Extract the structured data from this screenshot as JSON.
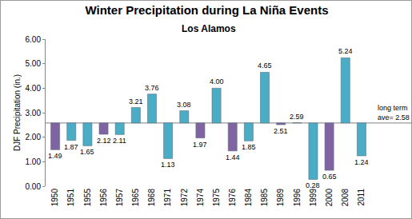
{
  "chart_data": {
    "type": "bar",
    "title": "Winter Precipitation during La Niña Events",
    "subtitle": "Los Alamos",
    "y_label": "DJF Precipitation (in.)",
    "categories": [
      "1950",
      "1951",
      "1955",
      "1956",
      "1957",
      "1965",
      "1968",
      "1971",
      "1972",
      "1974",
      "1975",
      "1976",
      "1984",
      "1985",
      "1989",
      "1996",
      "1999",
      "2000",
      "2008",
      "2011"
    ],
    "values": [
      1.49,
      1.87,
      1.65,
      2.12,
      2.11,
      3.21,
      3.76,
      1.13,
      3.08,
      1.97,
      4.0,
      1.44,
      1.85,
      4.65,
      2.51,
      2.59,
      0.28,
      0.65,
      5.24,
      1.24
    ],
    "value_labels": [
      "1.49",
      "1.87",
      "1.65",
      "2.12",
      "2.11",
      "3.21",
      "3.76",
      "1.13",
      "3.08",
      "1.97",
      "4.00",
      "1.44",
      "1.85",
      "4.65",
      "2.51",
      "2.59",
      "0.28",
      "0.65",
      "5.24",
      "1.24"
    ],
    "colors": [
      "#8064a2",
      "#4bacc6",
      "#4bacc6",
      "#8064a2",
      "#4bacc6",
      "#4bacc6",
      "#4bacc6",
      "#4bacc6",
      "#4bacc6",
      "#8064a2",
      "#4bacc6",
      "#8064a2",
      "#4bacc6",
      "#4bacc6",
      "#8064a2",
      "#4bacc6",
      "#4bacc6",
      "#8064a2",
      "#4bacc6",
      "#4bacc6"
    ],
    "baseline": {
      "label": "long term ave=",
      "value": 2.58,
      "value_label": "2.58"
    },
    "data_labels": true,
    "grid": false,
    "ylim": [
      0,
      6
    ],
    "yticks": [
      {
        "value": 0,
        "label": "0.00"
      },
      {
        "value": 1,
        "label": "1.00"
      },
      {
        "value": 2,
        "label": "2.00"
      },
      {
        "value": 3,
        "label": "3.00"
      },
      {
        "value": 4,
        "label": "4.00"
      },
      {
        "value": 5,
        "label": "5.00"
      },
      {
        "value": 6,
        "label": "6.00"
      }
    ]
  }
}
